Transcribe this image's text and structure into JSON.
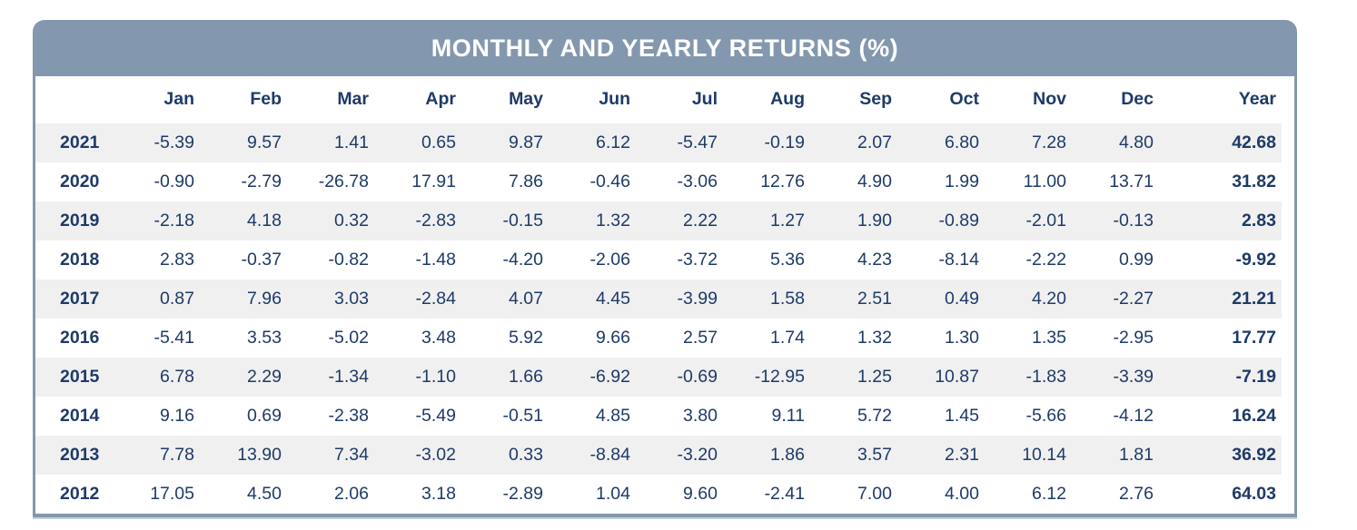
{
  "title": "MONTHLY AND YEARLY RETURNS (%)",
  "colors": {
    "header_bg": "#8398AE",
    "border": "#8398AE",
    "text": "#1E3A68",
    "title_text": "#FFFFFF",
    "stripe": "#F0F0F0",
    "row_bg": "#FFFFFF"
  },
  "chart_data": {
    "type": "table",
    "title": "MONTHLY AND YEARLY RETURNS (%)",
    "corner_label": "",
    "month_columns": [
      "Jan",
      "Feb",
      "Mar",
      "Apr",
      "May",
      "Jun",
      "Jul",
      "Aug",
      "Sep",
      "Oct",
      "Nov",
      "Dec"
    ],
    "year_column_label": "Year",
    "rows": [
      {
        "year": "2021",
        "monthly": [
          -5.39,
          9.57,
          1.41,
          0.65,
          9.87,
          6.12,
          -5.47,
          -0.19,
          2.07,
          6.8,
          7.28,
          4.8
        ],
        "yearly": 42.68
      },
      {
        "year": "2020",
        "monthly": [
          -0.9,
          -2.79,
          -26.78,
          17.91,
          7.86,
          -0.46,
          -3.06,
          12.76,
          4.9,
          1.99,
          11.0,
          13.71
        ],
        "yearly": 31.82
      },
      {
        "year": "2019",
        "monthly": [
          -2.18,
          4.18,
          0.32,
          -2.83,
          -0.15,
          1.32,
          2.22,
          1.27,
          1.9,
          -0.89,
          -2.01,
          -0.13
        ],
        "yearly": 2.83
      },
      {
        "year": "2018",
        "monthly": [
          2.83,
          -0.37,
          -0.82,
          -1.48,
          -4.2,
          -2.06,
          -3.72,
          5.36,
          4.23,
          -8.14,
          -2.22,
          0.99
        ],
        "yearly": -9.92
      },
      {
        "year": "2017",
        "monthly": [
          0.87,
          7.96,
          3.03,
          -2.84,
          4.07,
          4.45,
          -3.99,
          1.58,
          2.51,
          0.49,
          4.2,
          -2.27
        ],
        "yearly": 21.21
      },
      {
        "year": "2016",
        "monthly": [
          -5.41,
          3.53,
          -5.02,
          3.48,
          5.92,
          9.66,
          2.57,
          1.74,
          1.32,
          1.3,
          1.35,
          -2.95
        ],
        "yearly": 17.77
      },
      {
        "year": "2015",
        "monthly": [
          6.78,
          2.29,
          -1.34,
          -1.1,
          1.66,
          -6.92,
          -0.69,
          -12.95,
          1.25,
          10.87,
          -1.83,
          -3.39
        ],
        "yearly": -7.19
      },
      {
        "year": "2014",
        "monthly": [
          9.16,
          0.69,
          -2.38,
          -5.49,
          -0.51,
          4.85,
          3.8,
          9.11,
          5.72,
          1.45,
          -5.66,
          -4.12
        ],
        "yearly": 16.24
      },
      {
        "year": "2013",
        "monthly": [
          7.78,
          13.9,
          7.34,
          -3.02,
          0.33,
          -8.84,
          -3.2,
          1.86,
          3.57,
          2.31,
          10.14,
          1.81
        ],
        "yearly": 36.92
      },
      {
        "year": "2012",
        "monthly": [
          17.05,
          4.5,
          2.06,
          3.18,
          -2.89,
          1.04,
          9.6,
          -2.41,
          7.0,
          4.0,
          6.12,
          2.76
        ],
        "yearly": 64.03
      }
    ]
  }
}
